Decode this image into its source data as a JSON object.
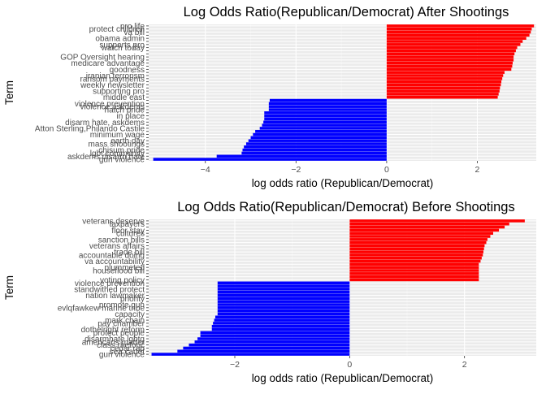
{
  "colors": {
    "positive": "#ff0000",
    "negative": "#0000ff",
    "panel": "#ebebeb",
    "grid_major": "#ffffff",
    "grid_minor": "#f5f5f5"
  },
  "chart_data": [
    {
      "type": "bar",
      "orientation": "horizontal",
      "title": "Log Odds Ratio(Republican/Democrat) After Shootings",
      "xlabel": "log odds ratio (Republican/Democrat)",
      "ylabel": "Term",
      "xlim": [
        -5.25,
        3.3
      ],
      "xticks": [
        -4,
        -2,
        0,
        2
      ],
      "grid": true,
      "categories": [
        "gun violence",
        "askdems disarm hate",
        "lgbt community",
        "chisum pride",
        "",
        "mass shootings",
        "earth day",
        "",
        "minimum wage",
        "",
        "Atton Sterling,Philando Castile",
        "",
        "disarm hate, askdems",
        "",
        "in place",
        "",
        "hatch pride",
        "violence askdems",
        "violence prevention",
        "",
        "middle east",
        "",
        "supporting pro",
        "",
        "weekly newsletter",
        "",
        "ransom payments",
        "iranian terrorism",
        "",
        "goodness",
        "",
        "medicare advantage",
        "",
        "GOP Oversight hearing",
        "",
        "",
        "watch today",
        "supports pro",
        "",
        "obama admin",
        "",
        "va bill",
        "protect children",
        "pro life"
      ],
      "values": [
        -5.15,
        -3.75,
        -3.2,
        -3.18,
        -3.15,
        -3.1,
        -3.05,
        -3.0,
        -2.95,
        -2.9,
        -2.8,
        -2.75,
        -2.72,
        -2.7,
        -2.7,
        -2.7,
        -2.6,
        -2.6,
        -2.6,
        -2.58,
        2.45,
        2.47,
        2.49,
        2.5,
        2.52,
        2.53,
        2.55,
        2.57,
        2.6,
        2.75,
        2.77,
        2.78,
        2.8,
        2.8,
        2.82,
        2.85,
        2.88,
        2.95,
        3.0,
        3.08,
        3.15,
        3.18,
        3.2,
        3.25
      ]
    },
    {
      "type": "bar",
      "orientation": "horizontal",
      "title": "Log Odds Ratio(Republican/Democrat) Before Shootings",
      "xlabel": "log odds ratio (Republican/Democrat)",
      "ylabel": "Term",
      "xlim": [
        -3.5,
        3.25
      ],
      "xticks": [
        -2,
        0,
        2
      ],
      "grid": true,
      "categories": [
        "gun violence",
        "sea cadet",
        "cedar rap",
        "class rhetoric",
        "americans matter",
        "disarmhate lgbtq",
        "",
        "protect people",
        "dothelright reform",
        "",
        "pay chamber",
        "mark chain",
        "",
        "capacity",
        "",
        "evlqfawkew marine tribe",
        "promote gun",
        "",
        "priority",
        "nation lawmaker",
        "",
        "standwithed protect",
        "",
        "violence prevention",
        "voting policy",
        "",
        "",
        "houseflood bill",
        "plummeted",
        "",
        "va accountability",
        "",
        "accountable doing",
        "trade bill",
        "",
        "veterans affairs",
        "",
        "sanction bills",
        "",
        "cultures",
        "floor stay",
        "",
        "taxpayers",
        "veterans deserve"
      ],
      "values": [
        -3.45,
        -3.0,
        -2.9,
        -2.8,
        -2.7,
        -2.65,
        -2.6,
        -2.6,
        -2.4,
        -2.4,
        -2.38,
        -2.36,
        -2.34,
        -2.3,
        -2.3,
        -2.3,
        -2.3,
        -2.3,
        -2.3,
        -2.3,
        -2.3,
        -2.3,
        -2.3,
        -2.3,
        2.25,
        2.25,
        2.25,
        2.25,
        2.25,
        2.25,
        2.28,
        2.3,
        2.32,
        2.33,
        2.34,
        2.35,
        2.38,
        2.4,
        2.45,
        2.5,
        2.6,
        2.7,
        2.78,
        3.05
      ]
    }
  ]
}
